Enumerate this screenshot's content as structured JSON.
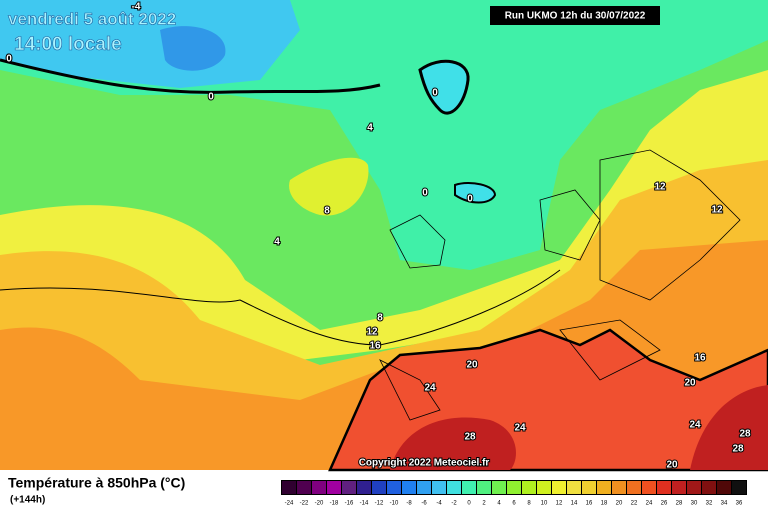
{
  "header": {
    "date": "vendredi 5 août 2022",
    "time": "14:00 locale",
    "run": "Run UKMO 12h du 30/07/2022"
  },
  "copyright": "Copyright 2022 Meteociel.fr",
  "contour_labels": [
    -4,
    0,
    0,
    0,
    0,
    0,
    0,
    4,
    4,
    8,
    8,
    12,
    12,
    12,
    16,
    16,
    20,
    20,
    20,
    24,
    24,
    24,
    28,
    28,
    28
  ],
  "legend": {
    "title": "Température à 850hPa (°C)",
    "lead": "(+144h)",
    "scale": [
      -24,
      -22,
      -20,
      -18,
      -16,
      -14,
      -12,
      -10,
      -8,
      -6,
      -4,
      -2,
      0,
      2,
      4,
      6,
      8,
      10,
      12,
      14,
      16,
      18,
      20,
      22,
      24,
      26,
      28,
      30,
      32,
      34,
      36
    ],
    "colors": [
      "#300030",
      "#500050",
      "#800080",
      "#a000a0",
      "#602080",
      "#302090",
      "#2040c0",
      "#2060e0",
      "#2080f0",
      "#30a0f0",
      "#40c0f0",
      "#40e0e0",
      "#40f0b0",
      "#50f080",
      "#70f050",
      "#90f030",
      "#b0f020",
      "#d0f020",
      "#f0f030",
      "#f0e040",
      "#f0d030",
      "#f0b020",
      "#f09020",
      "#f07020",
      "#f05020",
      "#e03020",
      "#c02020",
      "#a01818",
      "#801010",
      "#500808",
      "#101010"
    ]
  }
}
